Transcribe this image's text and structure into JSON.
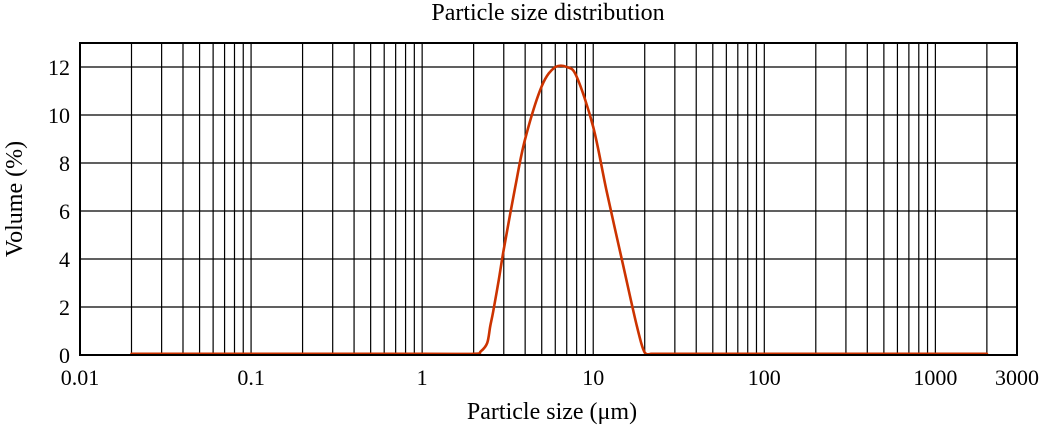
{
  "chart_data": {
    "type": "line",
    "title": "Particle size distribution",
    "xlabel": "Particle size (μm)",
    "ylabel": "Volume (%)",
    "x_scale": "log",
    "xlim": [
      0.01,
      3000
    ],
    "ylim": [
      0,
      13
    ],
    "grid": true,
    "legend": "none",
    "x_tick_values": [
      0.01,
      0.1,
      1,
      10,
      100,
      1000,
      3000
    ],
    "x_tick_labels": [
      "0.01",
      "0.1",
      "1",
      "10",
      "100",
      "1000",
      "3000"
    ],
    "x_grid_lines": [
      0.02,
      0.03,
      0.04,
      0.05,
      0.06,
      0.07,
      0.08,
      0.09,
      0.1,
      0.2,
      0.3,
      0.4,
      0.5,
      0.6,
      0.7,
      0.8,
      0.9,
      1,
      2,
      3,
      4,
      5,
      6,
      7,
      8,
      9,
      10,
      20,
      30,
      40,
      50,
      60,
      70,
      80,
      90,
      100,
      200,
      300,
      400,
      500,
      600,
      700,
      800,
      900,
      1000,
      2000
    ],
    "y_tick_values": [
      0,
      2,
      4,
      6,
      8,
      10,
      12
    ],
    "y_tick_labels": [
      "0",
      "2",
      "4",
      "6",
      "8",
      "10",
      "12"
    ],
    "series": [
      {
        "color": "#cc3300",
        "x": [
          0.02,
          0.1,
          1,
          2,
          2.2,
          2.4,
          2.5,
          2.6,
          2.8,
          3,
          3.5,
          4,
          5,
          6,
          7,
          8,
          10,
          12,
          15,
          18,
          20,
          22,
          25,
          100,
          1000,
          2000
        ],
        "y": [
          0.05,
          0.05,
          0.05,
          0.05,
          0.15,
          0.5,
          1.2,
          1.8,
          3.1,
          4.4,
          7.0,
          9.0,
          11.2,
          12.0,
          12.0,
          11.6,
          9.5,
          6.8,
          3.7,
          1.2,
          0.1,
          0.05,
          0.05,
          0.05,
          0.05,
          0.05
        ]
      }
    ]
  }
}
